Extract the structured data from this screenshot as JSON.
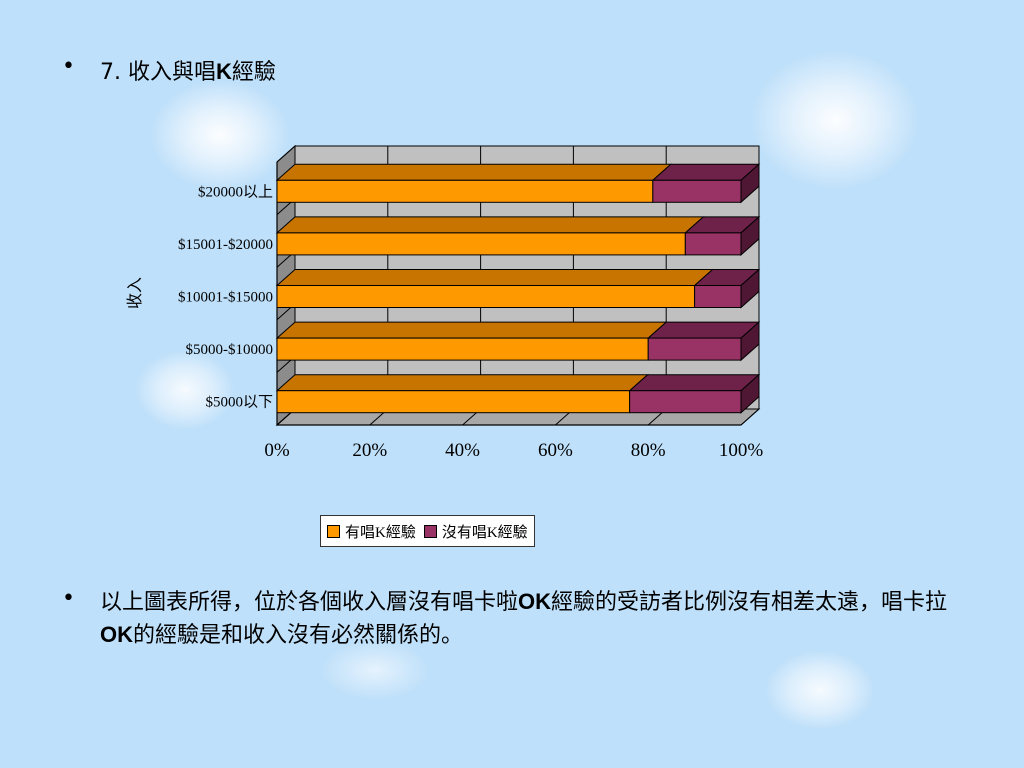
{
  "bullet1": {
    "symbol": "•",
    "prefix": "7. 收入與唱",
    "bold": "K",
    "suffix": "經驗"
  },
  "bullet2": {
    "symbol": "•",
    "part1": "以上圖表所得，位於各個收入層沒有唱卡啦",
    "bold1": "OK",
    "part2": "經驗的受訪者比例沒有相差太遠，唱卡拉",
    "bold2": "OK",
    "part3": "的經驗是和收入沒有必然關係的。"
  },
  "colors": {
    "series1": "#ff9900",
    "series1_top": "#c77400",
    "series2": "#993366",
    "series2_top": "#6e2149",
    "series2_side": "#4f1733",
    "plot_bg": "#c0c0c0",
    "wall": "#8c8c8c"
  },
  "chart_data": {
    "type": "bar",
    "orientation": "horizontal",
    "stacked": "percent",
    "categories": [
      "$20000以上",
      "$15001-$20000",
      "$10001-$15000",
      "$5000-$10000",
      "$5000以下"
    ],
    "series": [
      {
        "name": "有唱K經驗",
        "values": [
          81,
          88,
          90,
          80,
          76
        ]
      },
      {
        "name": "沒有唱K經驗",
        "values": [
          19,
          12,
          10,
          20,
          24
        ]
      }
    ],
    "ylabel": "收入",
    "xlabel": "",
    "xticks": [
      "0%",
      "20%",
      "40%",
      "60%",
      "80%",
      "100%"
    ],
    "xlim": [
      0,
      100
    ],
    "grid": true,
    "legend": "bottom"
  }
}
